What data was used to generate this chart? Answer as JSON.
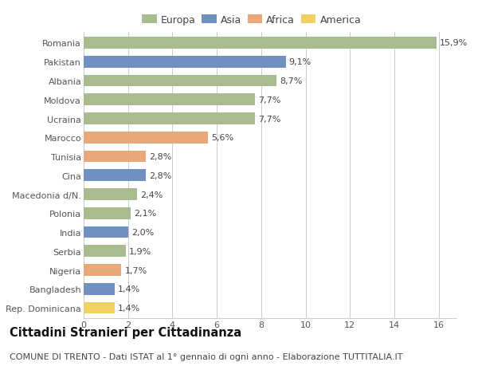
{
  "countries": [
    "Romania",
    "Pakistan",
    "Albania",
    "Moldova",
    "Ucraina",
    "Marocco",
    "Tunisia",
    "Cina",
    "Macedonia d/N.",
    "Polonia",
    "India",
    "Serbia",
    "Nigeria",
    "Bangladesh",
    "Rep. Dominicana"
  ],
  "values": [
    15.9,
    9.1,
    8.7,
    7.7,
    7.7,
    5.6,
    2.8,
    2.8,
    2.4,
    2.1,
    2.0,
    1.9,
    1.7,
    1.4,
    1.4
  ],
  "labels": [
    "15,9%",
    "9,1%",
    "8,7%",
    "7,7%",
    "7,7%",
    "5,6%",
    "2,8%",
    "2,8%",
    "2,4%",
    "2,1%",
    "2,0%",
    "1,9%",
    "1,7%",
    "1,4%",
    "1,4%"
  ],
  "regions": [
    "Europa",
    "Asia",
    "Europa",
    "Europa",
    "Europa",
    "Africa",
    "Africa",
    "Asia",
    "Europa",
    "Europa",
    "Asia",
    "Europa",
    "Africa",
    "Asia",
    "America"
  ],
  "region_colors": {
    "Europa": "#a8bc8f",
    "Asia": "#7090c0",
    "Africa": "#e8a878",
    "America": "#f0d060"
  },
  "legend_order": [
    "Europa",
    "Asia",
    "Africa",
    "America"
  ],
  "title": "Cittadini Stranieri per Cittadinanza",
  "subtitle": "COMUNE DI TRENTO - Dati ISTAT al 1° gennaio di ogni anno - Elaborazione TUTTITALIA.IT",
  "xlim": [
    0,
    16.8
  ],
  "xticks": [
    0,
    2,
    4,
    6,
    8,
    10,
    12,
    14,
    16
  ],
  "background_color": "#ffffff",
  "grid_color": "#cccccc",
  "bar_height": 0.62,
  "title_fontsize": 10.5,
  "subtitle_fontsize": 8,
  "tick_fontsize": 8,
  "label_fontsize": 8,
  "legend_fontsize": 9
}
